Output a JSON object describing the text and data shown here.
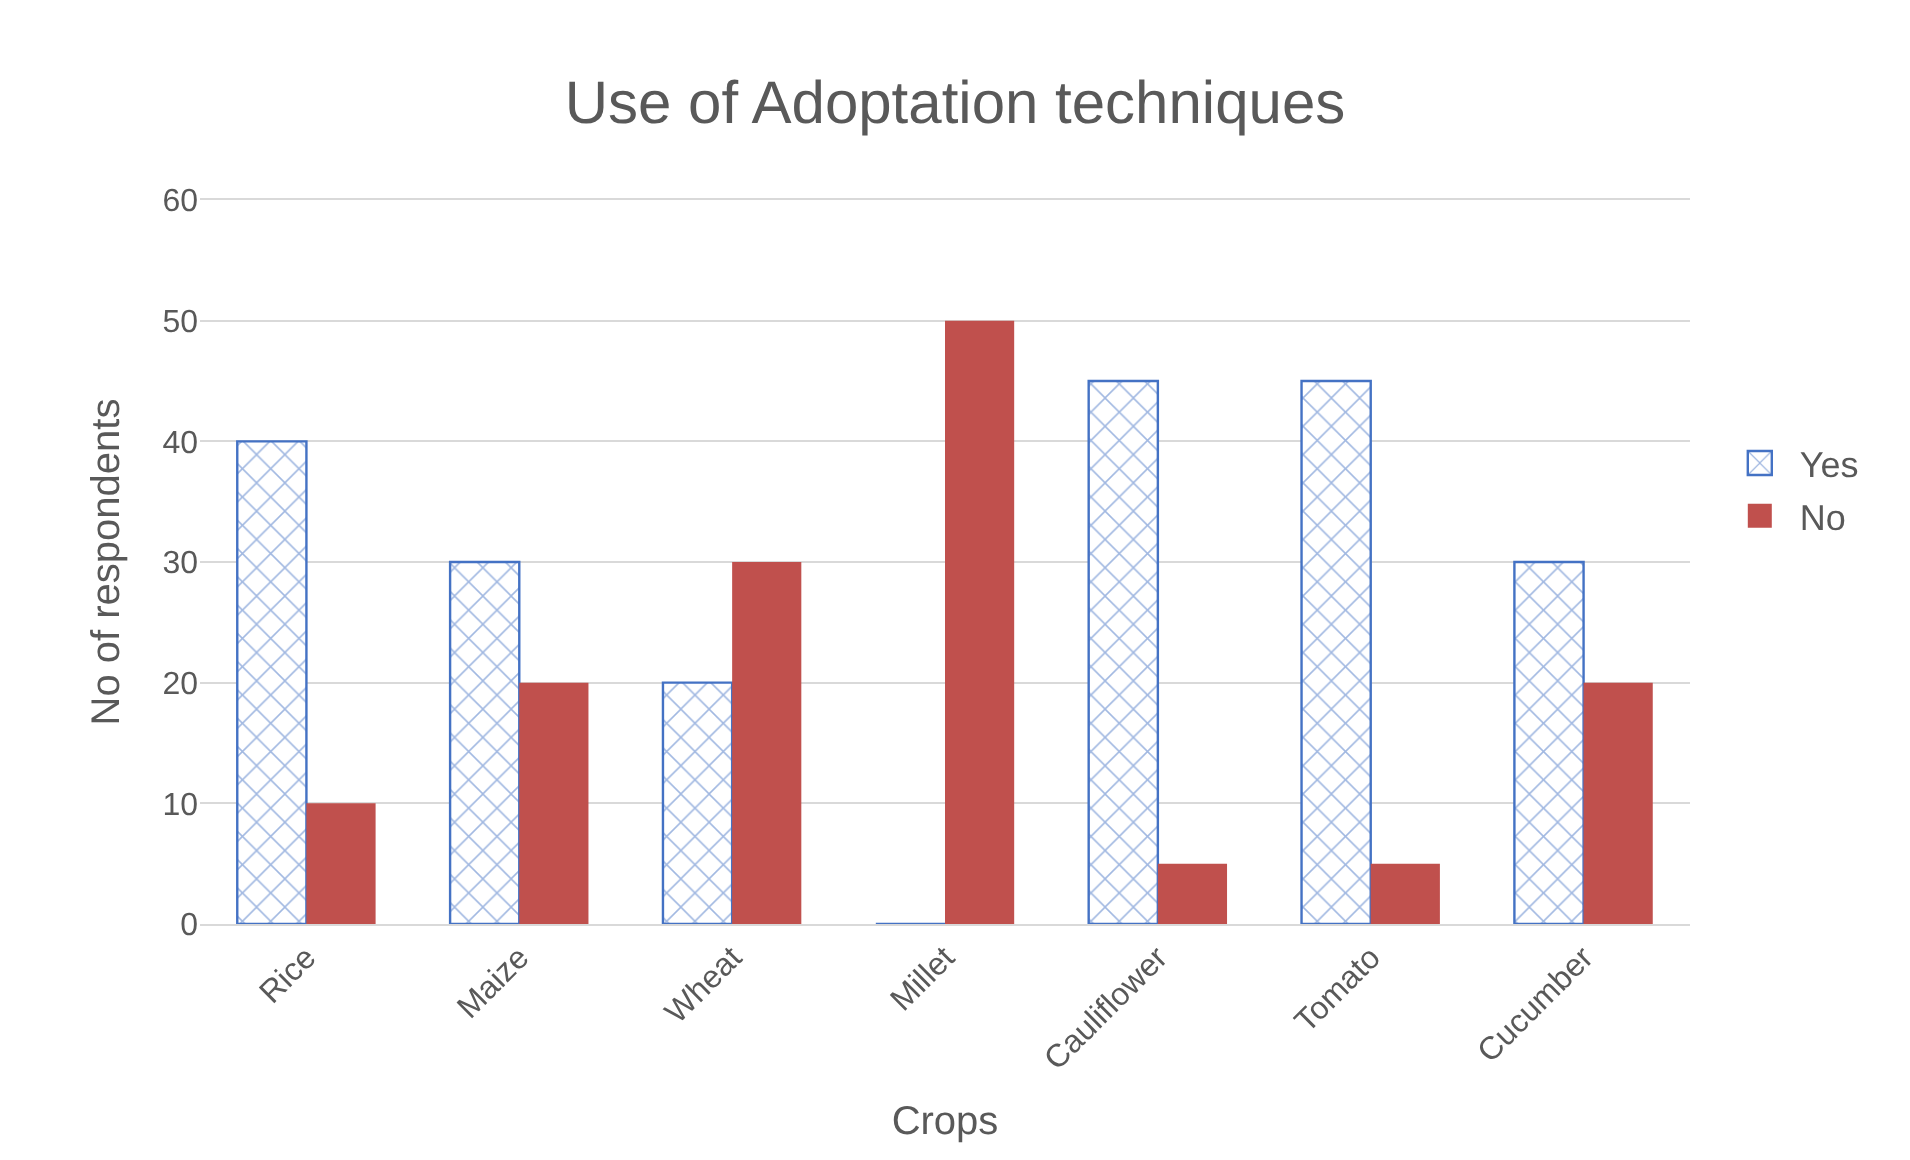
{
  "chart_data": {
    "type": "bar",
    "title": "Use of Adoptation techniques",
    "xlabel": "Crops",
    "ylabel": "No of respondents",
    "categories": [
      "Rice",
      "Maize",
      "Wheat",
      "Millet",
      "Cauliflower",
      "Tomato",
      "Cucumber"
    ],
    "series": [
      {
        "name": "Yes",
        "color": "#4472c4",
        "values": [
          40,
          30,
          20,
          0,
          45,
          45,
          30
        ]
      },
      {
        "name": "No",
        "color": "#c0504d",
        "values": [
          10,
          20,
          30,
          50,
          5,
          5,
          20
        ]
      }
    ],
    "ylim": [
      0,
      60
    ],
    "yticks": [
      0,
      10,
      20,
      30,
      40,
      50,
      60
    ],
    "grid": "y",
    "legend": "right"
  }
}
